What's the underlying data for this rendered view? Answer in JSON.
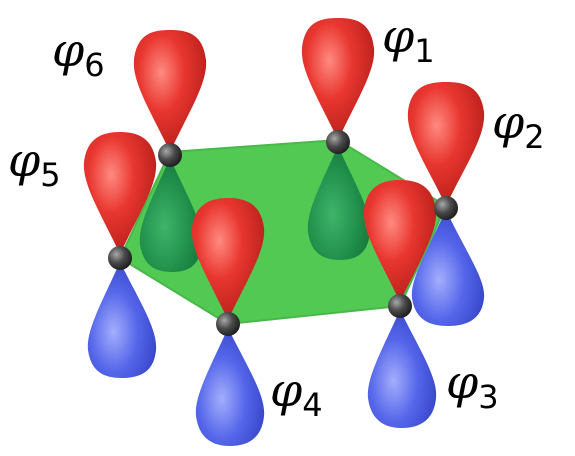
{
  "diagram": {
    "colors": {
      "ring": "#44c545",
      "ring_edge": "#3ab23c",
      "positive_lobe": "#e0322f",
      "negative_lobe": "#5566ea",
      "positive_lobe_below_ring": "#1f8e4a",
      "atom": "#3b3b3b"
    },
    "labels": {
      "phi_symbol": "φ",
      "phi1": "1",
      "phi2": "2",
      "phi3": "3",
      "phi4": "4",
      "phi5": "5",
      "phi6": "6"
    }
  }
}
